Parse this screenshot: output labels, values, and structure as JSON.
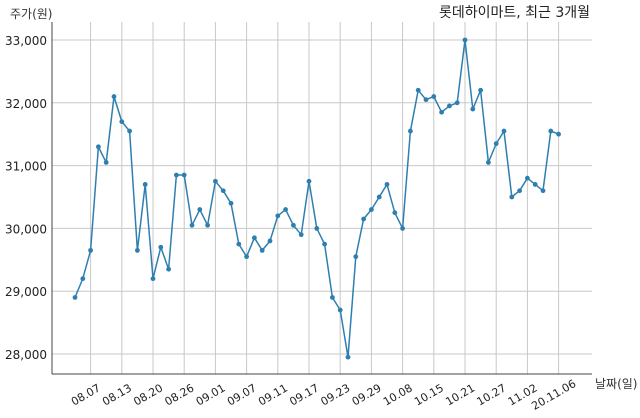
{
  "chart_data": {
    "type": "line",
    "title": "롯데하이마트, 최근 3개월",
    "ylabel": "주가(원)",
    "xlabel": "날짜(일)",
    "ylim": [
      27800,
      33200
    ],
    "y_ticks": [
      28000,
      29000,
      30000,
      31000,
      32000,
      33000
    ],
    "y_tick_labels": [
      "28,000",
      "29,000",
      "30,000",
      "31,000",
      "32,000",
      "33,000"
    ],
    "x_tick_labels": [
      "08.07",
      "08.13",
      "08.20",
      "08.26",
      "09.01",
      "09.07",
      "09.11",
      "09.17",
      "09.23",
      "09.29",
      "10.08",
      "10.15",
      "10.21",
      "10.27",
      "11.02",
      "20.11.06"
    ],
    "x_tick_index": [
      2,
      6,
      10,
      14,
      18,
      22,
      26,
      30,
      34,
      38,
      42,
      46,
      50,
      54,
      58,
      62
    ],
    "grid": true,
    "line_color": "#2e7fb0",
    "series": [
      {
        "values": [
          28900,
          29200,
          29650,
          31300,
          31050,
          32100,
          31700,
          31550,
          29650,
          30700,
          29200,
          29700,
          29350,
          30850,
          30850,
          30050,
          30300,
          30050,
          30750,
          30600,
          30400,
          29750,
          29550,
          29850,
          29650,
          29800,
          30200,
          30300,
          30050,
          29900,
          30750,
          30000,
          29750,
          28900,
          28700,
          27950,
          29550,
          30150,
          30300,
          30500,
          30700,
          30250,
          30000,
          31550,
          32200,
          32050,
          32100,
          31850,
          31950,
          32000,
          33000,
          31900,
          32200,
          31050,
          31350,
          31550,
          30500,
          30600,
          30800,
          30700,
          30600,
          31550,
          31500
        ]
      }
    ]
  }
}
